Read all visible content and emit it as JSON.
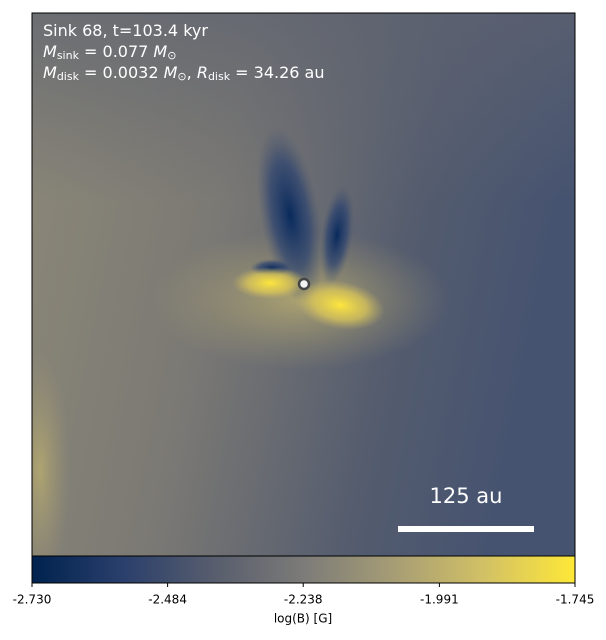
{
  "chart_data": {
    "type": "image",
    "annotation_lines": [
      [
        {
          "text": "Sink 68, t=103.4 kyr"
        }
      ],
      [
        {
          "text": "M"
        },
        {
          "text": "sink",
          "sub": true
        },
        {
          "text": " = 0.077 "
        },
        {
          "text": "M"
        },
        {
          "text": "⊙",
          "sub": true
        }
      ],
      [
        {
          "text": "M"
        },
        {
          "text": "disk",
          "sub": true
        },
        {
          "text": " = 0.0032 "
        },
        {
          "text": "M"
        },
        {
          "text": "⊙",
          "sub": true
        },
        {
          "text": ", "
        },
        {
          "text": "R"
        },
        {
          "text": "disk",
          "sub": true
        },
        {
          "text": " = 34.26 au"
        }
      ]
    ],
    "scale_bar_label": "125 au",
    "colorbar_label": "log(B) [G]",
    "clim": [
      -2.73,
      -1.745
    ],
    "cticks": [
      {
        "value": -2.73,
        "label": "-2.730"
      },
      {
        "value": -2.484,
        "label": "-2.484"
      },
      {
        "value": -2.238,
        "label": "-2.238"
      },
      {
        "value": -1.991,
        "label": "-1.991"
      },
      {
        "value": -1.745,
        "label": "-1.745"
      }
    ],
    "colormap": [
      "#00224e",
      "#2a3f6c",
      "#575d6d",
      "#7c7b78",
      "#a69d75",
      "#d2c165",
      "#fee838"
    ]
  }
}
